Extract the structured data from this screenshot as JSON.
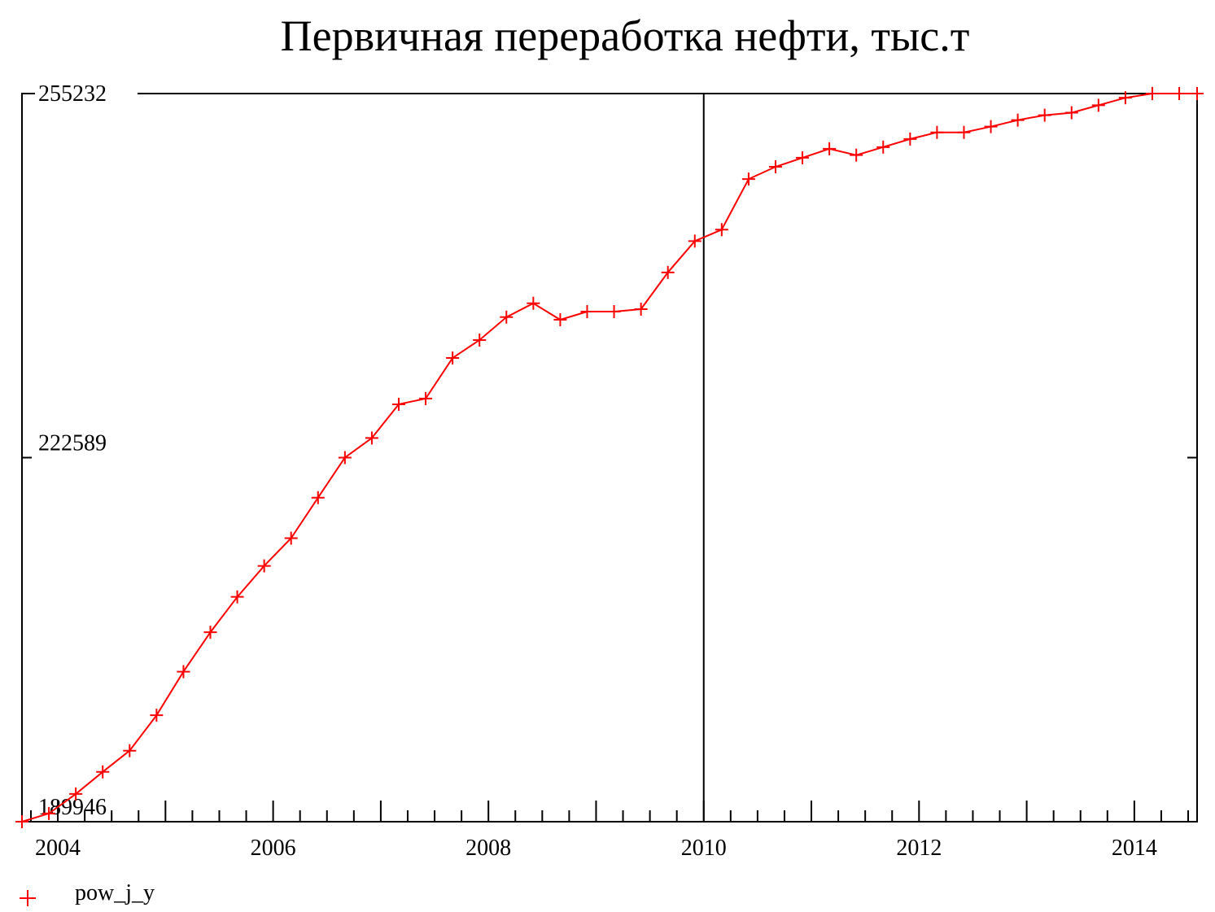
{
  "chart_data": {
    "type": "line",
    "title": "Первичная переработка нефти, тыс.т",
    "xlabel": "",
    "ylabel": "",
    "xlim": [
      2003.667,
      2014.583
    ],
    "ylim": [
      189946,
      255232
    ],
    "x_ticks": [
      2004,
      2006,
      2008,
      2010,
      2012,
      2014
    ],
    "x_tick_labels": [
      "2004",
      "2006",
      "2008",
      "2010",
      "2012",
      "2014"
    ],
    "y_ticks": [
      255232,
      222589,
      189946
    ],
    "y_tick_labels": [
      "255232",
      "222589",
      "189946"
    ],
    "vertical_reference_line": 2010,
    "grid": false,
    "legend_position": "bottom-left",
    "colors": {
      "series": "#ff0000",
      "axes": "#000000"
    },
    "series": [
      {
        "name": "pow_j_y",
        "marker": "plus",
        "x": [
          2003.667,
          2003.917,
          2004.167,
          2004.417,
          2004.667,
          2004.917,
          2005.167,
          2005.417,
          2005.667,
          2005.917,
          2006.167,
          2006.417,
          2006.667,
          2006.917,
          2007.167,
          2007.417,
          2007.667,
          2007.917,
          2008.167,
          2008.417,
          2008.667,
          2008.917,
          2009.167,
          2009.417,
          2009.667,
          2009.917,
          2010.167,
          2010.417,
          2010.667,
          2010.917,
          2011.167,
          2011.417,
          2011.667,
          2011.917,
          2012.167,
          2012.417,
          2012.667,
          2012.917,
          2013.167,
          2013.417,
          2013.667,
          2013.917,
          2014.167,
          2014.417,
          2014.583
        ],
        "values": [
          189946,
          190682,
          192437,
          194412,
          196313,
          199490,
          203396,
          206932,
          210102,
          212881,
          215366,
          219000,
          222589,
          224346,
          227371,
          227883,
          231521,
          233130,
          235190,
          236428,
          234951,
          235683,
          235683,
          235902,
          239195,
          242005,
          243029,
          247564,
          248666,
          249474,
          250278,
          249712,
          250431,
          251154,
          251750,
          251750,
          252265,
          252851,
          253293,
          253514,
          254180,
          254855,
          255232,
          255232,
          255232
        ]
      }
    ]
  }
}
